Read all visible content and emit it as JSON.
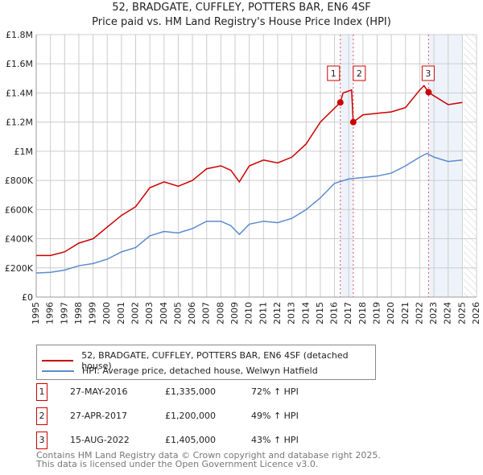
{
  "chart_data": {
    "type": "line",
    "title": "52, BRADGATE, CUFFLEY, POTTERS BAR, EN6 4SF",
    "subtitle": "Price paid vs. HM Land Registry's House Price Index (HPI)",
    "xlim": [
      1995,
      2026
    ],
    "ylim": [
      0,
      1800000
    ],
    "x_ticks": [
      "1995",
      "1996",
      "1997",
      "1998",
      "1999",
      "2000",
      "2001",
      "2002",
      "2003",
      "2004",
      "2005",
      "2006",
      "2007",
      "2008",
      "2009",
      "2010",
      "2011",
      "2012",
      "2013",
      "2014",
      "2015",
      "2016",
      "2017",
      "2018",
      "2019",
      "2020",
      "2021",
      "2022",
      "2023",
      "2024",
      "2025",
      "2026"
    ],
    "y_ticks": [
      {
        "v": 0,
        "l": "£0"
      },
      {
        "v": 200000,
        "l": "£200K"
      },
      {
        "v": 400000,
        "l": "£400K"
      },
      {
        "v": 600000,
        "l": "£600K"
      },
      {
        "v": 800000,
        "l": "£800K"
      },
      {
        "v": 1000000,
        "l": "£1M"
      },
      {
        "v": 1200000,
        "l": "£1.2M"
      },
      {
        "v": 1400000,
        "l": "£1.4M"
      },
      {
        "v": 1600000,
        "l": "£1.6M"
      },
      {
        "v": 1800000,
        "l": "£1.8M"
      }
    ],
    "grid": true,
    "series": [
      {
        "name": "52, BRADGATE, CUFFLEY, POTTERS BAR, EN6 4SF (detached house)",
        "color": "#cc0000",
        "x": [
          1995,
          1996,
          1997,
          1998,
          1999,
          2000,
          2001,
          2002,
          2003,
          2004,
          2005,
          2006,
          2007,
          2008,
          2008.7,
          2009.3,
          2010,
          2011,
          2012,
          2013,
          2014,
          2015,
          2016.41,
          2016.6,
          2017.2,
          2017.32,
          2018,
          2019,
          2020,
          2021,
          2022,
          2022.3,
          2022.62,
          2023,
          2024,
          2025.0
        ],
        "y": [
          285000,
          285000,
          310000,
          370000,
          400000,
          480000,
          560000,
          620000,
          750000,
          790000,
          760000,
          800000,
          880000,
          900000,
          870000,
          790000,
          900000,
          940000,
          920000,
          960000,
          1050000,
          1200000,
          1335000,
          1400000,
          1420000,
          1200000,
          1250000,
          1260000,
          1270000,
          1300000,
          1420000,
          1450000,
          1405000,
          1380000,
          1320000,
          1335000
        ]
      },
      {
        "name": "HPI: Average price, detached house, Welwyn Hatfield",
        "color": "#5b8bd0",
        "x": [
          1995,
          1996,
          1997,
          1998,
          1999,
          2000,
          2001,
          2002,
          2003,
          2004,
          2005,
          2006,
          2007,
          2008,
          2008.7,
          2009.3,
          2010,
          2011,
          2012,
          2013,
          2014,
          2015,
          2016,
          2017,
          2018,
          2019,
          2020,
          2021,
          2022,
          2022.5,
          2023,
          2024,
          2025.0
        ],
        "y": [
          165000,
          170000,
          185000,
          215000,
          230000,
          260000,
          310000,
          340000,
          420000,
          450000,
          440000,
          470000,
          520000,
          520000,
          490000,
          430000,
          500000,
          520000,
          510000,
          540000,
          600000,
          680000,
          780000,
          810000,
          820000,
          830000,
          850000,
          900000,
          960000,
          985000,
          960000,
          930000,
          940000
        ]
      }
    ],
    "sales": [
      {
        "n": "1",
        "x": 2016.41,
        "y": 1335000
      },
      {
        "n": "2",
        "x": 2017.32,
        "y": 1200000
      },
      {
        "n": "3",
        "x": 2022.62,
        "y": 1405000
      }
    ],
    "shaded": [
      [
        2016.41,
        2017.32
      ],
      [
        2022.62,
        2025.0
      ]
    ],
    "hatch_from": 2025.1
  },
  "legend": {
    "red": "52, BRADGATE, CUFFLEY, POTTERS BAR, EN6 4SF (detached house)",
    "blue": "HPI: Average price, detached house, Welwyn Hatfield"
  },
  "table": [
    {
      "n": "1",
      "date": "27-MAY-2016",
      "price": "£1,335,000",
      "hpi": "72% ↑ HPI"
    },
    {
      "n": "2",
      "date": "27-APR-2017",
      "price": "£1,200,000",
      "hpi": "49% ↑ HPI"
    },
    {
      "n": "3",
      "date": "15-AUG-2022",
      "price": "£1,405,000",
      "hpi": "43% ↑ HPI"
    }
  ],
  "footer": [
    "Contains HM Land Registry data © Crown copyright and database right 2025.",
    "This data is licensed under the Open Government Licence v3.0."
  ]
}
